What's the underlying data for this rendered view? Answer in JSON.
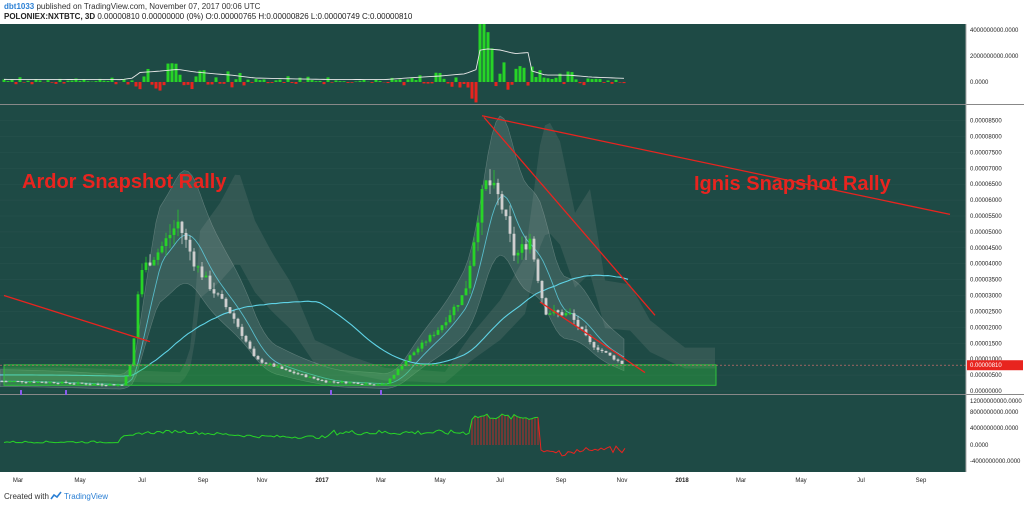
{
  "header": {
    "author": "dbt1033",
    "published_text": "published on TradingView.com, November 07, 2017 00:06 UTC",
    "symbol": "POLONIEX:NXTBTC, 3D",
    "ohlc": "0.00000810 0.00000000 (0%) O:0.00000765 H:0.00000826 L:0.00000749 C:0.00000810"
  },
  "footer": {
    "created_with": "Created with",
    "brand": "TradingView"
  },
  "colors": {
    "panel_bg": "#1e4a45",
    "bull": "#27d427",
    "bear": "#e8241f",
    "neutral_candle": "#cfcfcf",
    "ma_line": "#5fd3e6",
    "support_zone": "#2ec43a",
    "annotation": "#e8241f",
    "axis_bg": "#ffffff"
  },
  "chart_data": {
    "type": "candlestick",
    "title": "",
    "annotations": [
      "Ardor Snapshot Rally",
      "Ignis Snapshot Rally"
    ],
    "x_ticks": [
      "Mar",
      "May",
      "Jul",
      "Sep",
      "Nov",
      "2017",
      "Mar",
      "May",
      "Jul",
      "Sep",
      "Nov",
      "2018",
      "Mar",
      "May",
      "Jul",
      "Sep"
    ],
    "main_ticks": [
      "0.00008500",
      "0.00008000",
      "0.00007500",
      "0.00007000",
      "0.00006500",
      "0.00006000",
      "0.00005500",
      "0.00005000",
      "0.00004500",
      "0.00004000",
      "0.00003500",
      "0.00003000",
      "0.00002500",
      "0.00002000",
      "0.00001500",
      "0.00001000",
      "0.00000500",
      "0.00000000"
    ],
    "last_price_label": "0.00000810",
    "volume_ticks": [
      "4000000000.0000",
      "2000000000.0000",
      "0.0000"
    ],
    "oscillator_ticks": [
      "12000000000.0000",
      "8000000000.0000",
      "4000000000.0000",
      "0.0000",
      "-4000000000.0000"
    ],
    "ylim": [
      0,
      8.8e-05
    ],
    "price_path": [
      {
        "x": 0,
        "y": 3.1e-06
      },
      {
        "x": 20,
        "y": 3e-06
      },
      {
        "x": 55,
        "y": 2.7e-06
      },
      {
        "x": 100,
        "y": 2.1e-06
      },
      {
        "x": 122,
        "y": 1.9e-06
      },
      {
        "x": 132,
        "y": 9.3e-06
      },
      {
        "x": 140,
        "y": 3.75e-05
      },
      {
        "x": 160,
        "y": 4.45e-05
      },
      {
        "x": 178,
        "y": 5.3e-05
      },
      {
        "x": 195,
        "y": 4e-05
      },
      {
        "x": 212,
        "y": 3.2e-05
      },
      {
        "x": 232,
        "y": 2.4e-05
      },
      {
        "x": 255,
        "y": 1e-05
      },
      {
        "x": 290,
        "y": 6e-06
      },
      {
        "x": 325,
        "y": 3e-06
      },
      {
        "x": 360,
        "y": 2.5e-06
      },
      {
        "x": 385,
        "y": 2e-06
      },
      {
        "x": 410,
        "y": 1.1e-05
      },
      {
        "x": 440,
        "y": 2e-05
      },
      {
        "x": 465,
        "y": 3.1e-05
      },
      {
        "x": 480,
        "y": 5.9e-05
      },
      {
        "x": 487,
        "y": 6.6e-05
      },
      {
        "x": 500,
        "y": 6e-05
      },
      {
        "x": 515,
        "y": 4.2e-05
      },
      {
        "x": 530,
        "y": 4.8e-05
      },
      {
        "x": 545,
        "y": 2.5e-05
      },
      {
        "x": 570,
        "y": 2.4e-05
      },
      {
        "x": 590,
        "y": 1.5e-05
      },
      {
        "x": 610,
        "y": 1.1e-05
      },
      {
        "x": 625,
        "y": 8.1e-06
      }
    ]
  }
}
